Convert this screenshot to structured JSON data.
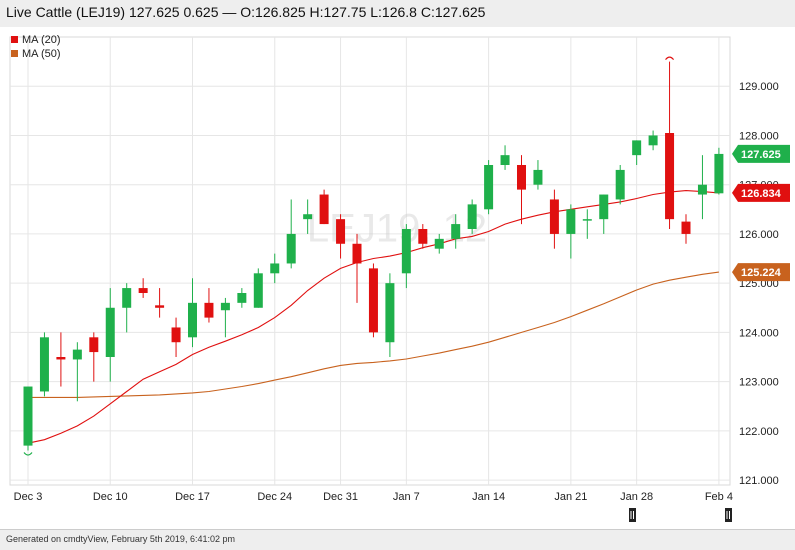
{
  "header": {
    "title": "Live Cattle (LEJ19) 127.625 0.625 — O:126.825 H:127.75 L:126.8 C:127.625"
  },
  "footer": {
    "text": "Generated on cmdtyView, February 5th 2019, 6:41:02 pm"
  },
  "chart_data": {
    "type": "candlestick",
    "symbol_watermark": "LEJ19, 12",
    "legend": [
      {
        "name": "MA (20)",
        "color": "#e01010"
      },
      {
        "name": "MA (50)",
        "color": "#c8621e"
      }
    ],
    "colors": {
      "up": "#1fb04b",
      "down": "#e01010",
      "ma20": "#e01010",
      "ma50": "#c8621e"
    },
    "ylim": [
      120.9,
      130.0
    ],
    "yticks": [
      "121.000",
      "122.000",
      "123.000",
      "124.000",
      "125.000",
      "126.000",
      "127.000",
      "128.000",
      "129.000"
    ],
    "xtick_labels": [
      {
        "index": 0,
        "label": "Dec 3"
      },
      {
        "index": 5,
        "label": "Dec 10"
      },
      {
        "index": 10,
        "label": "Dec 17"
      },
      {
        "index": 15,
        "label": "Dec 24"
      },
      {
        "index": 19,
        "label": "Dec 31"
      },
      {
        "index": 23,
        "label": "Jan 7"
      },
      {
        "index": 28,
        "label": "Jan 14"
      },
      {
        "index": 33,
        "label": "Jan 21"
      },
      {
        "index": 37,
        "label": "Jan 28"
      },
      {
        "index": 42,
        "label": "Feb 4"
      }
    ],
    "candles": [
      {
        "o": 121.7,
        "h": 122.9,
        "l": 121.6,
        "c": 122.9
      },
      {
        "o": 122.8,
        "h": 124.0,
        "l": 122.7,
        "c": 123.9
      },
      {
        "o": 123.5,
        "h": 124.0,
        "l": 122.9,
        "c": 123.45
      },
      {
        "o": 123.45,
        "h": 123.8,
        "l": 122.6,
        "c": 123.65
      },
      {
        "o": 123.9,
        "h": 124.0,
        "l": 123.0,
        "c": 123.6
      },
      {
        "o": 123.5,
        "h": 124.9,
        "l": 123.0,
        "c": 124.5
      },
      {
        "o": 124.5,
        "h": 125.0,
        "l": 124.0,
        "c": 124.9
      },
      {
        "o": 124.9,
        "h": 125.1,
        "l": 124.7,
        "c": 124.8
      },
      {
        "o": 124.55,
        "h": 124.9,
        "l": 124.3,
        "c": 124.5
      },
      {
        "o": 124.1,
        "h": 124.3,
        "l": 123.5,
        "c": 123.8
      },
      {
        "o": 123.9,
        "h": 125.1,
        "l": 123.7,
        "c": 124.6
      },
      {
        "o": 124.6,
        "h": 124.9,
        "l": 124.2,
        "c": 124.3
      },
      {
        "o": 124.45,
        "h": 124.7,
        "l": 123.9,
        "c": 124.6
      },
      {
        "o": 124.6,
        "h": 124.9,
        "l": 124.5,
        "c": 124.8
      },
      {
        "o": 124.5,
        "h": 125.3,
        "l": 124.5,
        "c": 125.2
      },
      {
        "o": 125.2,
        "h": 125.6,
        "l": 125.0,
        "c": 125.4
      },
      {
        "o": 125.4,
        "h": 126.7,
        "l": 125.3,
        "c": 126.0
      },
      {
        "o": 126.3,
        "h": 126.7,
        "l": 126.0,
        "c": 126.4
      },
      {
        "o": 126.8,
        "h": 126.9,
        "l": 126.2,
        "c": 126.2
      },
      {
        "o": 126.3,
        "h": 126.4,
        "l": 125.5,
        "c": 125.8
      },
      {
        "o": 125.8,
        "h": 126.0,
        "l": 124.6,
        "c": 125.4
      },
      {
        "o": 125.3,
        "h": 125.4,
        "l": 123.9,
        "c": 124.0
      },
      {
        "o": 123.8,
        "h": 125.2,
        "l": 123.5,
        "c": 125.0
      },
      {
        "o": 125.2,
        "h": 126.2,
        "l": 124.9,
        "c": 126.1
      },
      {
        "o": 126.1,
        "h": 126.2,
        "l": 125.7,
        "c": 125.8
      },
      {
        "o": 125.7,
        "h": 126.0,
        "l": 125.6,
        "c": 125.9
      },
      {
        "o": 125.9,
        "h": 126.4,
        "l": 125.7,
        "c": 126.2
      },
      {
        "o": 126.1,
        "h": 126.7,
        "l": 126.0,
        "c": 126.6
      },
      {
        "o": 126.5,
        "h": 127.5,
        "l": 126.4,
        "c": 127.4
      },
      {
        "o": 127.4,
        "h": 127.8,
        "l": 127.3,
        "c": 127.6
      },
      {
        "o": 127.4,
        "h": 127.6,
        "l": 126.2,
        "c": 126.9
      },
      {
        "o": 127.0,
        "h": 127.5,
        "l": 126.9,
        "c": 127.3
      },
      {
        "o": 126.7,
        "h": 126.9,
        "l": 125.7,
        "c": 126.0
      },
      {
        "o": 126.0,
        "h": 126.6,
        "l": 125.5,
        "c": 126.5
      },
      {
        "o": 126.3,
        "h": 126.5,
        "l": 125.9,
        "c": 126.3
      },
      {
        "o": 126.3,
        "h": 126.8,
        "l": 126.0,
        "c": 126.8
      },
      {
        "o": 126.7,
        "h": 127.4,
        "l": 126.6,
        "c": 127.3
      },
      {
        "o": 127.6,
        "h": 127.9,
        "l": 127.4,
        "c": 127.9
      },
      {
        "o": 127.8,
        "h": 128.1,
        "l": 127.7,
        "c": 128.0
      },
      {
        "o": 128.05,
        "h": 129.5,
        "l": 126.1,
        "c": 126.3
      },
      {
        "o": 126.25,
        "h": 126.4,
        "l": 125.8,
        "c": 126.0
      },
      {
        "o": 126.8,
        "h": 127.6,
        "l": 126.3,
        "c": 127.0
      },
      {
        "o": 126.825,
        "h": 127.75,
        "l": 126.8,
        "c": 127.625
      }
    ],
    "ma20": [
      121.75,
      121.82,
      121.95,
      122.1,
      122.3,
      122.55,
      122.8,
      123.05,
      123.2,
      123.35,
      123.55,
      123.7,
      123.82,
      123.95,
      124.1,
      124.3,
      124.55,
      124.85,
      125.1,
      125.3,
      125.42,
      125.5,
      125.55,
      125.62,
      125.72,
      125.8,
      125.9,
      125.95,
      126.05,
      126.2,
      126.3,
      126.38,
      126.45,
      126.5,
      126.55,
      126.6,
      126.65,
      126.72,
      126.8,
      126.85,
      126.88,
      126.86,
      126.834
    ],
    "ma50": [
      122.68,
      122.68,
      122.68,
      122.68,
      122.69,
      122.7,
      122.71,
      122.72,
      122.73,
      122.75,
      122.77,
      122.8,
      122.85,
      122.9,
      122.96,
      123.03,
      123.1,
      123.18,
      123.26,
      123.33,
      123.37,
      123.39,
      123.42,
      123.46,
      123.52,
      123.58,
      123.65,
      123.72,
      123.8,
      123.9,
      124.0,
      124.1,
      124.2,
      124.32,
      124.45,
      124.58,
      124.72,
      124.86,
      124.98,
      125.06,
      125.12,
      125.18,
      125.224
    ],
    "price_tags": [
      {
        "label": "127.625",
        "value": 127.625,
        "color": "#1fb04b"
      },
      {
        "label": "126.834",
        "value": 126.834,
        "color": "#e01010"
      },
      {
        "label": "125.224",
        "value": 125.224,
        "color": "#c8621e"
      }
    ]
  }
}
